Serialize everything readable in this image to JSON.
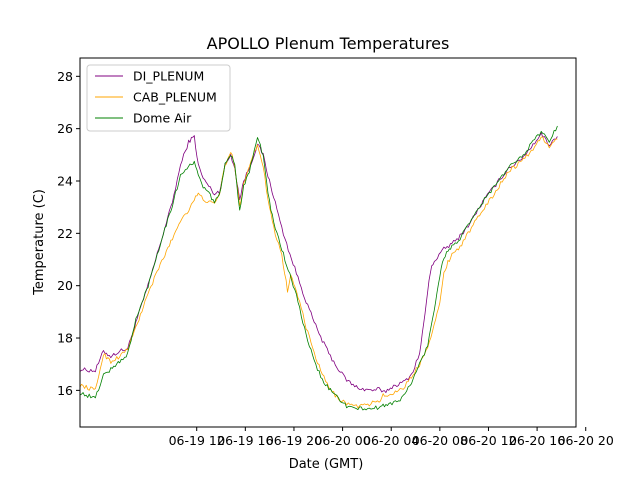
{
  "chart_data": {
    "type": "line",
    "title": "APOLLO Plenum Temperatures",
    "xlabel": "Date (GMT)",
    "ylabel": "Temperature (C)",
    "x_unit": "hours since 06-19 00:00 GMT",
    "xlim": [
      -10.4,
      50.8
    ],
    "ylim": [
      14.6,
      28.7
    ],
    "yticks": [
      16,
      18,
      20,
      22,
      24,
      26,
      28
    ],
    "xticks": [
      {
        "x": 4,
        "label": "06-19 12"
      },
      {
        "x": 10,
        "label": "06-19 16"
      },
      {
        "x": 16,
        "label": "06-19 20"
      },
      {
        "x": 22,
        "label": "06-20 00"
      },
      {
        "x": 28,
        "label": "06-20 04"
      },
      {
        "x": 34,
        "label": "06-20 08"
      },
      {
        "x": 40,
        "label": "06-20 12"
      },
      {
        "x": 46,
        "label": "06-20 16"
      },
      {
        "x": 52,
        "label": "06-20 20"
      }
    ],
    "xtick_labels_visible": [
      "06-19 12",
      "06-19 16",
      "06-19 20",
      "06-20 00",
      "06-20 04",
      "06-20 08",
      "06-20 12",
      "06-20 16",
      "06-20 20"
    ],
    "legend_position": "top-left",
    "series": [
      {
        "name": "DI_PLENUM",
        "color": "#800080",
        "points": [
          [
            -10.4,
            16.8
          ],
          [
            -8.5,
            16.75
          ],
          [
            -7.5,
            17.5
          ],
          [
            -6.6,
            17.3
          ],
          [
            -5.5,
            17.5
          ],
          [
            -4.5,
            17.6
          ],
          [
            -3.5,
            18.6
          ],
          [
            -2,
            20
          ],
          [
            -0.5,
            21.6
          ],
          [
            1,
            23.2
          ],
          [
            2,
            24.6
          ],
          [
            3,
            25.5
          ],
          [
            3.7,
            25.7
          ],
          [
            4.2,
            24.6
          ],
          [
            4.8,
            24.1
          ],
          [
            5.5,
            23.8
          ],
          [
            6.2,
            23.5
          ],
          [
            6.8,
            23.6
          ],
          [
            7.5,
            24.6
          ],
          [
            8.2,
            25
          ],
          [
            8.7,
            24.5
          ],
          [
            9.3,
            23.3
          ],
          [
            9.8,
            24
          ],
          [
            10.5,
            24.5
          ],
          [
            11.5,
            25.4
          ],
          [
            12.2,
            25
          ],
          [
            12.8,
            24.2
          ],
          [
            13.5,
            23.4
          ],
          [
            14.5,
            22.2
          ],
          [
            15.5,
            21.2
          ],
          [
            16.5,
            20.3
          ],
          [
            17.5,
            19.4
          ],
          [
            18.5,
            18.6
          ],
          [
            19.5,
            17.9
          ],
          [
            20.5,
            17.3
          ],
          [
            21.5,
            16.8
          ],
          [
            22.5,
            16.4
          ],
          [
            23.5,
            16.15
          ],
          [
            24.5,
            16.05
          ],
          [
            25.5,
            16
          ],
          [
            26.5,
            16.05
          ],
          [
            27,
            15.9
          ],
          [
            27.7,
            16.05
          ],
          [
            28.5,
            16.2
          ],
          [
            29.5,
            16.3
          ],
          [
            30.5,
            16.6
          ],
          [
            31.5,
            17.4
          ],
          [
            32,
            18.5
          ],
          [
            32.5,
            19.8
          ],
          [
            33,
            20.8
          ],
          [
            33.5,
            21
          ],
          [
            34.5,
            21.4
          ],
          [
            35.5,
            21.6
          ],
          [
            36.5,
            21.9
          ],
          [
            37.5,
            22.3
          ],
          [
            38.5,
            22.8
          ],
          [
            39.5,
            23.3
          ],
          [
            40.5,
            23.7
          ],
          [
            41.5,
            24.1
          ],
          [
            42.5,
            24.5
          ],
          [
            43.5,
            24.7
          ],
          [
            44.5,
            25
          ],
          [
            45.5,
            25.4
          ],
          [
            46.5,
            25.8
          ],
          [
            47.5,
            25.4
          ],
          [
            48.5,
            25.7
          ]
        ]
      },
      {
        "name": "CAB_PLENUM",
        "color": "#ffa500",
        "points": [
          [
            -10.4,
            16.2
          ],
          [
            -8.5,
            16
          ],
          [
            -7.5,
            17.4
          ],
          [
            -6.6,
            17.1
          ],
          [
            -5.5,
            17.3
          ],
          [
            -4.5,
            17.6
          ],
          [
            -3.5,
            18.4
          ],
          [
            -2,
            19.7
          ],
          [
            -0.5,
            20.8
          ],
          [
            1,
            21.8
          ],
          [
            2,
            22.5
          ],
          [
            3,
            22.9
          ],
          [
            3.7,
            23.3
          ],
          [
            4.2,
            23.5
          ],
          [
            4.8,
            23.3
          ],
          [
            5.5,
            23.2
          ],
          [
            6.2,
            23.1
          ],
          [
            6.8,
            23.5
          ],
          [
            7.5,
            24.6
          ],
          [
            8.2,
            25.1
          ],
          [
            8.7,
            24.6
          ],
          [
            9.3,
            23
          ],
          [
            9.8,
            23.9
          ],
          [
            10.5,
            24.6
          ],
          [
            11.5,
            25.4
          ],
          [
            12.2,
            24.6
          ],
          [
            12.8,
            23.3
          ],
          [
            13.5,
            22.2
          ],
          [
            14.5,
            21.2
          ],
          [
            15.2,
            19.8
          ],
          [
            15.6,
            20.4
          ],
          [
            16.5,
            19.6
          ],
          [
            17.5,
            18.4
          ],
          [
            18.5,
            17.4
          ],
          [
            19.5,
            16.6
          ],
          [
            20.5,
            16
          ],
          [
            21.5,
            15.7
          ],
          [
            22.5,
            15.5
          ],
          [
            23.5,
            15.4
          ],
          [
            24.5,
            15.4
          ],
          [
            25.5,
            15.5
          ],
          [
            26.5,
            15.6
          ],
          [
            27,
            15.8
          ],
          [
            27.7,
            15.8
          ],
          [
            28.5,
            15.95
          ],
          [
            29.5,
            16.1
          ],
          [
            30.5,
            16.5
          ],
          [
            31.5,
            17
          ],
          [
            32.5,
            17.7
          ],
          [
            33.3,
            18.5
          ],
          [
            34,
            19.3
          ],
          [
            34.5,
            20.5
          ],
          [
            35,
            20.9
          ],
          [
            35.5,
            21.2
          ],
          [
            36.5,
            21.5
          ],
          [
            37.5,
            22
          ],
          [
            38.5,
            22.5
          ],
          [
            39.5,
            23
          ],
          [
            40.5,
            23.4
          ],
          [
            41.5,
            23.9
          ],
          [
            42.5,
            24.4
          ],
          [
            43.5,
            24.6
          ],
          [
            44.5,
            24.9
          ],
          [
            45.5,
            25.2
          ],
          [
            46.5,
            25.7
          ],
          [
            47.5,
            25.3
          ],
          [
            48.5,
            25.6
          ]
        ]
      },
      {
        "name": "Dome Air",
        "color": "#008000",
        "points": [
          [
            -10.4,
            15.9
          ],
          [
            -8.5,
            15.7
          ],
          [
            -7.5,
            16.6
          ],
          [
            -6.6,
            16.8
          ],
          [
            -5.5,
            17.1
          ],
          [
            -4.5,
            17.4
          ],
          [
            -3.5,
            18.7
          ],
          [
            -2,
            20
          ],
          [
            -0.5,
            21.6
          ],
          [
            1,
            23.1
          ],
          [
            2,
            24.2
          ],
          [
            3,
            24.6
          ],
          [
            3.7,
            24.7
          ],
          [
            4.2,
            24.2
          ],
          [
            4.8,
            23.8
          ],
          [
            5.5,
            23.5
          ],
          [
            6.2,
            23.2
          ],
          [
            6.8,
            23.5
          ],
          [
            7.5,
            24.6
          ],
          [
            8.2,
            25
          ],
          [
            8.7,
            24.6
          ],
          [
            9.3,
            22.9
          ],
          [
            9.8,
            23.8
          ],
          [
            10.5,
            24.4
          ],
          [
            11.5,
            25.7
          ],
          [
            12.2,
            25
          ],
          [
            12.8,
            23.5
          ],
          [
            13.5,
            22.4
          ],
          [
            14.5,
            21.4
          ],
          [
            15.5,
            20.4
          ],
          [
            16.5,
            19.4
          ],
          [
            17.5,
            18.1
          ],
          [
            18.5,
            17.1
          ],
          [
            19.5,
            16.4
          ],
          [
            20.5,
            16
          ],
          [
            21.5,
            15.7
          ],
          [
            22.5,
            15.4
          ],
          [
            23.5,
            15.3
          ],
          [
            24.5,
            15.3
          ],
          [
            25.5,
            15.3
          ],
          [
            26.5,
            15.35
          ],
          [
            27,
            15.4
          ],
          [
            27.7,
            15.5
          ],
          [
            28.5,
            15.55
          ],
          [
            29.5,
            15.75
          ],
          [
            30.5,
            16.3
          ],
          [
            31.5,
            17
          ],
          [
            32.5,
            17.7
          ],
          [
            33.3,
            19.1
          ],
          [
            34,
            20.4
          ],
          [
            34.5,
            21.1
          ],
          [
            35,
            21.3
          ],
          [
            35.5,
            21.5
          ],
          [
            36.5,
            21.8
          ],
          [
            37.5,
            22.3
          ],
          [
            38.5,
            22.8
          ],
          [
            39.5,
            23.3
          ],
          [
            40.5,
            23.7
          ],
          [
            41.5,
            24.1
          ],
          [
            42.5,
            24.5
          ],
          [
            43.5,
            24.8
          ],
          [
            44.5,
            25.1
          ],
          [
            45.5,
            25.5
          ],
          [
            46.5,
            25.9
          ],
          [
            47.5,
            25.5
          ],
          [
            48.5,
            26.1
          ]
        ]
      }
    ]
  }
}
